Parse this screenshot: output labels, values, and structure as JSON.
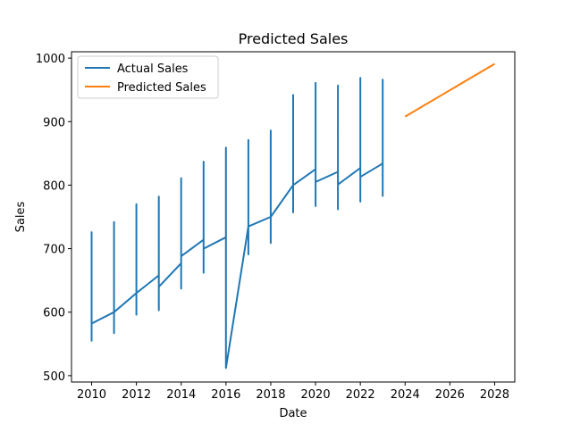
{
  "chart_data": {
    "type": "line",
    "title": "Predicted Sales",
    "xlabel": "Date",
    "ylabel": "Sales",
    "xlim": [
      2009.1,
      2028.9
    ],
    "ylim": [
      490,
      1010
    ],
    "x_ticks": [
      "2010",
      "2012",
      "2014",
      "2016",
      "2018",
      "2020",
      "2022",
      "2024",
      "2026",
      "2028"
    ],
    "y_ticks": [
      "500",
      "600",
      "700",
      "800",
      "900",
      "1000"
    ],
    "grid": false,
    "legend_position": "top-left",
    "series": [
      {
        "name": "Actual Sales",
        "color": "#1f77b4",
        "points": [
          [
            2010.0,
            582
          ],
          [
            2010.0,
            726
          ],
          [
            2010.0,
            555
          ],
          [
            2010.0,
            570
          ],
          [
            2010.0,
            582
          ],
          [
            2011.0,
            600
          ],
          [
            2011.0,
            742
          ],
          [
            2011.0,
            567
          ],
          [
            2011.0,
            585
          ],
          [
            2011.0,
            600
          ],
          [
            2012.0,
            630
          ],
          [
            2012.0,
            770
          ],
          [
            2012.0,
            596
          ],
          [
            2012.0,
            620
          ],
          [
            2012.0,
            630
          ],
          [
            2013.0,
            658
          ],
          [
            2013.0,
            782
          ],
          [
            2013.0,
            603
          ],
          [
            2013.0,
            640
          ],
          [
            2014.0,
            677
          ],
          [
            2014.0,
            811
          ],
          [
            2014.0,
            637
          ],
          [
            2014.0,
            688
          ],
          [
            2015.0,
            714
          ],
          [
            2015.0,
            837
          ],
          [
            2015.0,
            662
          ],
          [
            2015.0,
            700
          ],
          [
            2016.0,
            718
          ],
          [
            2016.0,
            859
          ],
          [
            2016.0,
            512
          ],
          [
            2017.0,
            735
          ],
          [
            2017.0,
            871
          ],
          [
            2017.0,
            691
          ],
          [
            2017.0,
            735
          ],
          [
            2018.0,
            750
          ],
          [
            2018.0,
            886
          ],
          [
            2018.0,
            709
          ],
          [
            2018.0,
            750
          ],
          [
            2019.0,
            800
          ],
          [
            2019.0,
            942
          ],
          [
            2019.0,
            757
          ],
          [
            2019.0,
            800
          ],
          [
            2020.0,
            825
          ],
          [
            2020.0,
            961
          ],
          [
            2020.0,
            767
          ],
          [
            2020.0,
            805
          ],
          [
            2021.0,
            821
          ],
          [
            2021.0,
            957
          ],
          [
            2021.0,
            762
          ],
          [
            2021.0,
            801
          ],
          [
            2022.0,
            827
          ],
          [
            2022.0,
            969
          ],
          [
            2022.0,
            774
          ],
          [
            2022.0,
            813
          ],
          [
            2023.0,
            834
          ],
          [
            2023.0,
            966
          ],
          [
            2023.0,
            783
          ],
          [
            2023.0,
            834
          ]
        ]
      },
      {
        "name": "Predicted Sales",
        "color": "#ff7f0e",
        "points": [
          [
            2024.0,
            908
          ],
          [
            2028.0,
            991
          ]
        ]
      }
    ]
  }
}
